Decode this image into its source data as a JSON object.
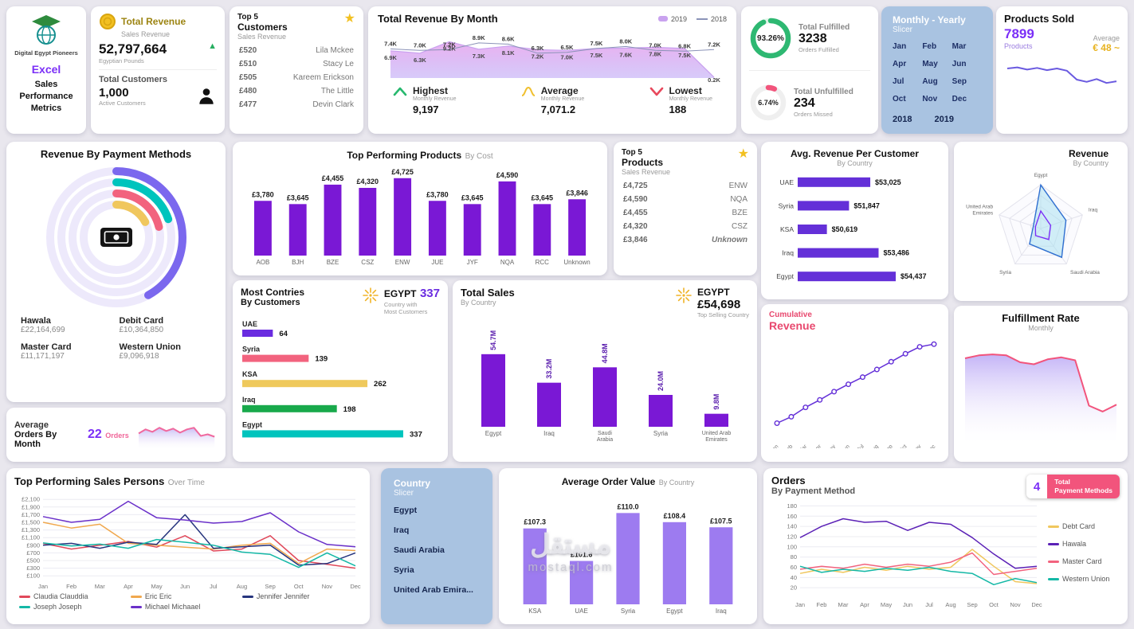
{
  "watermark": {
    "arabic": "مستقل",
    "latin": "mostaql.com"
  },
  "colors": {
    "purple": "#7b2ff7",
    "pink": "#f2547c",
    "slicer_blue": "#a9c3e1",
    "gold": "#f2c021",
    "green": "#2eb872",
    "teal": "#00c4bd"
  },
  "logo_card": {
    "org": "Digital Egypt Pioneers",
    "app": "Excel",
    "line1": "Sales",
    "line2": "Performance",
    "line3": "Metrics"
  },
  "total_revenue_card": {
    "title": "Total Revenue",
    "subtitle": "Sales Revenue",
    "value": "52,797,664",
    "unit": "Egyptian Pounds",
    "customers_title": "Total Customers",
    "customers_value": "1,000",
    "customers_subtitle": "Active Customers"
  },
  "top_customers_card": {
    "title_top": "Top 5",
    "title": "Customers",
    "subtitle": "Sales Revenue",
    "rows": [
      {
        "amount": "£520",
        "name": "Lila Mckee"
      },
      {
        "amount": "£510",
        "name": "Stacy Le"
      },
      {
        "amount": "£505",
        "name": "Kareem Erickson"
      },
      {
        "amount": "£480",
        "name": "The Little"
      },
      {
        "amount": "£477",
        "name": "Devin Clark"
      }
    ]
  },
  "revenue_month_card": {
    "title": "Total Revenue By Month",
    "highest_label": "Highest",
    "highest_sub": "Monthly Revenue",
    "highest_value": "9,197",
    "average_label": "Average",
    "average_sub": "Monthly Revenue",
    "average_value": "7,071.2",
    "lowest_label": "Lowest",
    "lowest_sub": "Monthly Revenue",
    "lowest_value": "188"
  },
  "fulfilled_card": {
    "fulfilled_title": "Total Fulfilled",
    "fulfilled_value": "3238",
    "fulfilled_sub": "Orders Fulfilled",
    "unfulfilled_title": "Total Unfulfilled",
    "unfulfilled_value": "234",
    "unfulfilled_sub": "Orders Missed"
  },
  "monthly_slicer_card": {
    "title1": "Monthly - Yearly",
    "title2": "Slicer",
    "months": [
      "Jan",
      "Feb",
      "Mar",
      "Apr",
      "May",
      "Jun",
      "Jul",
      "Aug",
      "Sep",
      "Oct",
      "Nov",
      "Dec"
    ],
    "years": [
      "2018",
      "2019"
    ]
  },
  "products_sold_card": {
    "title": "Products Sold",
    "value": "7899",
    "unit": "Products",
    "avg_label": "Average",
    "avg_value": "€ 48 ~"
  },
  "payment_methods_card": {
    "title": "Revenue By Payment Methods",
    "legend": [
      {
        "name": "Hawala",
        "value": "£22,164,699"
      },
      {
        "name": "Debit Card",
        "value": "£10,364,850"
      },
      {
        "name": "Master Card",
        "value": "£11,171,197"
      },
      {
        "name": "Western Union",
        "value": "£9,096,918"
      }
    ]
  },
  "top_products_card": {
    "title": "Top Performing Products",
    "subtitle": "By Cost"
  },
  "top5_products_card": {
    "title_top": "Top 5",
    "title": "Products",
    "subtitle": "Sales Revenue",
    "rows": [
      {
        "amount": "£4,725",
        "name": "ENW"
      },
      {
        "amount": "£4,590",
        "name": "NQA"
      },
      {
        "amount": "£4,455",
        "name": "BZE"
      },
      {
        "amount": "£4,320",
        "name": "CSZ"
      },
      {
        "amount": "£3,846",
        "name": "Unknown"
      }
    ]
  },
  "avg_revenue_card": {
    "title": "Avg. Revenue Per Customer",
    "subtitle": "By Country"
  },
  "radar_card": {
    "title": "Revenue",
    "subtitle": "By Country"
  },
  "most_countries_card": {
    "title1": "Most Contries",
    "title2": "By Customers",
    "highlight_country": "EGYPT",
    "highlight_value": "337",
    "highlight_sub1": "Country with",
    "highlight_sub2": "Most Customers"
  },
  "total_sales_card": {
    "title": "Total Sales",
    "subtitle": "By Country",
    "highlight_country": "EGYPT",
    "highlight_value": "£54,698",
    "highlight_sub": "Top Selling Country"
  },
  "cumulative_card": {
    "title1": "Cumulative",
    "title2": "Revenue"
  },
  "fulfillment_rate_card": {
    "title": "Fulfillment Rate",
    "subtitle": "Monthly"
  },
  "avg_orders_card": {
    "title1": "Average",
    "title2": "Orders By Month",
    "value": "22",
    "unit": "Orders"
  },
  "sales_persons_card": {
    "title": "Top Performing Sales Persons",
    "subtitle": "Over Time"
  },
  "country_slicer_card": {
    "title1": "Country",
    "title2": "Slicer",
    "items": [
      "Egypt",
      "Iraq",
      "Saudi Arabia",
      "Syria",
      "United Arab Emira..."
    ]
  },
  "avg_order_value_card": {
    "title": "Average Order Value",
    "subtitle": "By Country"
  },
  "orders_card": {
    "title1": "Orders",
    "title2": "By Payment Method",
    "badge_value": "4",
    "badge_label1": "Total",
    "badge_label2": "Payment Methods"
  },
  "chart_data": [
    {
      "id": "total_revenue_by_month",
      "type": "area",
      "title": "Total Revenue By Month",
      "categories": [
        "Jan",
        "Feb",
        "Mar",
        "Apr",
        "May",
        "Jun",
        "Jul",
        "Aug",
        "Sep",
        "Oct",
        "Nov",
        "Dec"
      ],
      "ylim": [
        0,
        10.5
      ],
      "unit": "K",
      "series": [
        {
          "name": "2019",
          "color": "#c9a2ef",
          "values": [
            6.9,
            6.3,
            9.2,
            7.3,
            8.1,
            7.2,
            7.0,
            7.5,
            7.6,
            7.8,
            7.5,
            0.2
          ]
        },
        {
          "name": "2018",
          "color": "#8b93b8",
          "values": [
            7.4,
            7.0,
            7.2,
            8.9,
            8.6,
            6.3,
            6.5,
            7.5,
            8.0,
            7.0,
            6.8,
            7.2
          ]
        }
      ],
      "stats": {
        "highest": "9,197",
        "average": "7,071.2",
        "lowest": "188"
      }
    },
    {
      "id": "fulfilled_gauge",
      "type": "donut",
      "value": 93.26,
      "label": "93.26%",
      "color": "#2eb872",
      "track": "#e3f4ea"
    },
    {
      "id": "unfulfilled_gauge",
      "type": "donut",
      "value": 6.74,
      "label": "6.74%",
      "color": "#f2547c",
      "track": "#efefef"
    },
    {
      "id": "products_sold_trend",
      "type": "line",
      "sparkline": true,
      "color": "#6a5ae0",
      "ylim": [
        0,
        60
      ],
      "values": [
        50,
        52,
        48,
        51,
        47,
        50,
        46,
        30,
        26,
        31,
        24,
        27
      ]
    },
    {
      "id": "revenue_by_payment_method",
      "type": "rings",
      "total": 52797664,
      "segments": [
        {
          "name": "Hawala",
          "value": 22164699,
          "color": "#7b68ee"
        },
        {
          "name": "Debit Card",
          "value": 10364850,
          "color": "#00c4bd"
        },
        {
          "name": "Master Card",
          "value": 11171197,
          "color": "#f2637e"
        },
        {
          "name": "Western Union",
          "value": 9096918,
          "color": "#f0c75e"
        }
      ]
    },
    {
      "id": "top_performing_products_by_cost",
      "type": "vbar",
      "color": "#7a18d5",
      "ylim": [
        1500,
        4850
      ],
      "categories": [
        "AOB",
        "BJH",
        "BZE",
        "CSZ",
        "ENW",
        "JUE",
        "JYF",
        "NQA",
        "RCC",
        "Unknown"
      ],
      "values": [
        3780,
        3645,
        4455,
        4320,
        4725,
        3780,
        3645,
        4590,
        3645,
        3846
      ],
      "labels": [
        "£3,780",
        "£3,645",
        "£4,455",
        "£4,320",
        "£4,725",
        "£3,780",
        "£3,645",
        "£4,590",
        "£3,645",
        "£3,846"
      ]
    },
    {
      "id": "avg_revenue_per_customer",
      "type": "hbar",
      "color": "#6430d8",
      "xlim": [
        49000,
        54437
      ],
      "categories": [
        "UAE",
        "Syria",
        "KSA",
        "Iraq",
        "Egypt"
      ],
      "values": [
        53025,
        51847,
        50619,
        53486,
        54437
      ],
      "labels": [
        "$53,025",
        "$51,847",
        "$50,619",
        "$53,486",
        "$54,437"
      ]
    },
    {
      "id": "revenue_by_country_radar",
      "type": "radar",
      "max": 55,
      "axes": [
        "Egypt",
        "Iraq",
        "Saudi Arabia",
        "Syria",
        "United Arab Emirates"
      ],
      "series": [
        {
          "name": "2019",
          "color": "#2f6fd0",
          "fill": "#a5dff0",
          "values": [
            54.7,
            33.2,
            44.8,
            24.0,
            9.8
          ]
        },
        {
          "name": "2018",
          "color": "#7b2ff7",
          "fill": "none",
          "values": [
            22,
            13,
            17,
            11,
            7
          ]
        }
      ]
    },
    {
      "id": "customers_by_country",
      "type": "hbar2",
      "max": 337,
      "rows": [
        {
          "name": "UAE",
          "value": 64,
          "color": "#6a2ce0"
        },
        {
          "name": "Syria",
          "value": 139,
          "color": "#f2637e"
        },
        {
          "name": "KSA",
          "value": 262,
          "color": "#efc95c"
        },
        {
          "name": "Iraq",
          "value": 198,
          "color": "#18a94b"
        },
        {
          "name": "Egypt",
          "value": 337,
          "color": "#00c4bd"
        }
      ]
    },
    {
      "id": "total_sales_by_country",
      "type": "vbar",
      "color": "#7a18d5",
      "ylim": [
        0,
        60
      ],
      "rotate_labels": true,
      "categories": [
        "Egypt",
        "Iraq",
        "Saudi Arabia",
        "Syria",
        "United Arab Emirates"
      ],
      "values": [
        54.7,
        33.2,
        44.8,
        24.0,
        9.8
      ],
      "labels": [
        "54.7M",
        "33.2M",
        "44.8M",
        "24.0M",
        "9.8M"
      ]
    },
    {
      "id": "cumulative_revenue",
      "type": "line",
      "markers": true,
      "color": "#6430d8",
      "ylim": [
        0,
        92
      ],
      "x_rotate": true,
      "categories": [
        "Jan",
        "Feb",
        "Mar",
        "Apr",
        "May",
        "Jun",
        "Jul",
        "Aug",
        "Sep",
        "Oct",
        "Nov",
        "Dec"
      ],
      "values": [
        7.4,
        13.7,
        22.9,
        30.2,
        38.3,
        45.5,
        52.5,
        60.0,
        67.6,
        75.4,
        82.2,
        84.8
      ]
    },
    {
      "id": "fulfillment_rate_monthly",
      "type": "line",
      "sparkline": true,
      "area": true,
      "color": "#f2547c",
      "fill_from": "#b9a6f5",
      "ylim": [
        0,
        105
      ],
      "values": [
        88,
        91,
        92,
        91,
        84,
        82,
        87,
        89,
        86,
        40,
        34,
        41
      ]
    },
    {
      "id": "average_orders_by_month",
      "type": "line",
      "sparkline": true,
      "area": true,
      "color": "#f0699e",
      "fill_from": "#c0b0f2",
      "ylim": [
        0,
        35
      ],
      "values": [
        20,
        25,
        22,
        27,
        23,
        26,
        21,
        25,
        27,
        17,
        19,
        16
      ]
    },
    {
      "id": "top_sales_persons_over_time",
      "type": "line",
      "ylim": [
        0,
        2250
      ],
      "categories": [
        "Jan",
        "Feb",
        "Mar",
        "Apr",
        "May",
        "Jun",
        "Jul",
        "Aug",
        "Sep",
        "Oct",
        "Nov",
        "Dec"
      ],
      "y_ticks": [
        "£2,100",
        "£1,900",
        "£1,700",
        "£1,500",
        "£1,300",
        "£1,100",
        "£900",
        "£700",
        "£500",
        "£300",
        "£100"
      ],
      "series": [
        {
          "name": "Claudia Clauddia",
          "color": "#e0485a",
          "values": [
            950,
            800,
            900,
            1000,
            850,
            1150,
            750,
            800,
            1150,
            500,
            400,
            300
          ]
        },
        {
          "name": "Eric Eric",
          "color": "#f0a84e",
          "values": [
            1500,
            1350,
            1450,
            950,
            900,
            850,
            800,
            900,
            950,
            420,
            800,
            760
          ]
        },
        {
          "name": "Jennifer Jennifer",
          "color": "#27357e",
          "values": [
            900,
            950,
            820,
            980,
            920,
            1700,
            820,
            860,
            900,
            380,
            420,
            700
          ]
        },
        {
          "name": "Joseph Joseph",
          "color": "#14b8a6",
          "values": [
            960,
            880,
            930,
            820,
            1050,
            980,
            900,
            720,
            660,
            320,
            700,
            360
          ]
        },
        {
          "name": "Michael Michaael",
          "color": "#6a30c9",
          "values": [
            1650,
            1500,
            1580,
            2050,
            1620,
            1560,
            1480,
            1520,
            1750,
            1250,
            920,
            860
          ]
        }
      ]
    },
    {
      "id": "average_order_value_by_country",
      "type": "vbar",
      "color": "#9d7bf0",
      "ylim": [
        94,
        112
      ],
      "categories": [
        "KSA",
        "UAE",
        "Syria",
        "Egypt",
        "Iraq"
      ],
      "values": [
        107.3,
        101.6,
        110.0,
        108.4,
        107.5
      ],
      "labels": [
        "£107.3",
        "£101.6",
        "£110.0",
        "£108.4",
        "£107.5"
      ]
    },
    {
      "id": "orders_by_payment_method",
      "type": "line",
      "ylim": [
        0,
        190
      ],
      "categories": [
        "Jan",
        "Feb",
        "Mar",
        "Apr",
        "May",
        "Jun",
        "Jul",
        "Aug",
        "Sep",
        "Oct",
        "Nov",
        "Dec"
      ],
      "y_ticks": [
        "180",
        "160",
        "140",
        "120",
        "100",
        "80",
        "60",
        "40",
        "20"
      ],
      "series": [
        {
          "name": "Debt Card",
          "color": "#f0c75e",
          "values": [
            48,
            56,
            50,
            60,
            54,
            62,
            56,
            60,
            95,
            62,
            32,
            28
          ]
        },
        {
          "name": "Hawala",
          "color": "#5b21b6",
          "values": [
            118,
            140,
            155,
            148,
            150,
            132,
            148,
            144,
            118,
            86,
            58,
            62
          ]
        },
        {
          "name": "Master Card",
          "color": "#f2637e",
          "values": [
            56,
            62,
            58,
            66,
            60,
            66,
            62,
            70,
            88,
            46,
            52,
            58
          ]
        },
        {
          "name": "Western Union",
          "color": "#14b8a6",
          "values": [
            62,
            50,
            56,
            52,
            58,
            54,
            60,
            52,
            48,
            26,
            38,
            30
          ]
        }
      ]
    }
  ]
}
